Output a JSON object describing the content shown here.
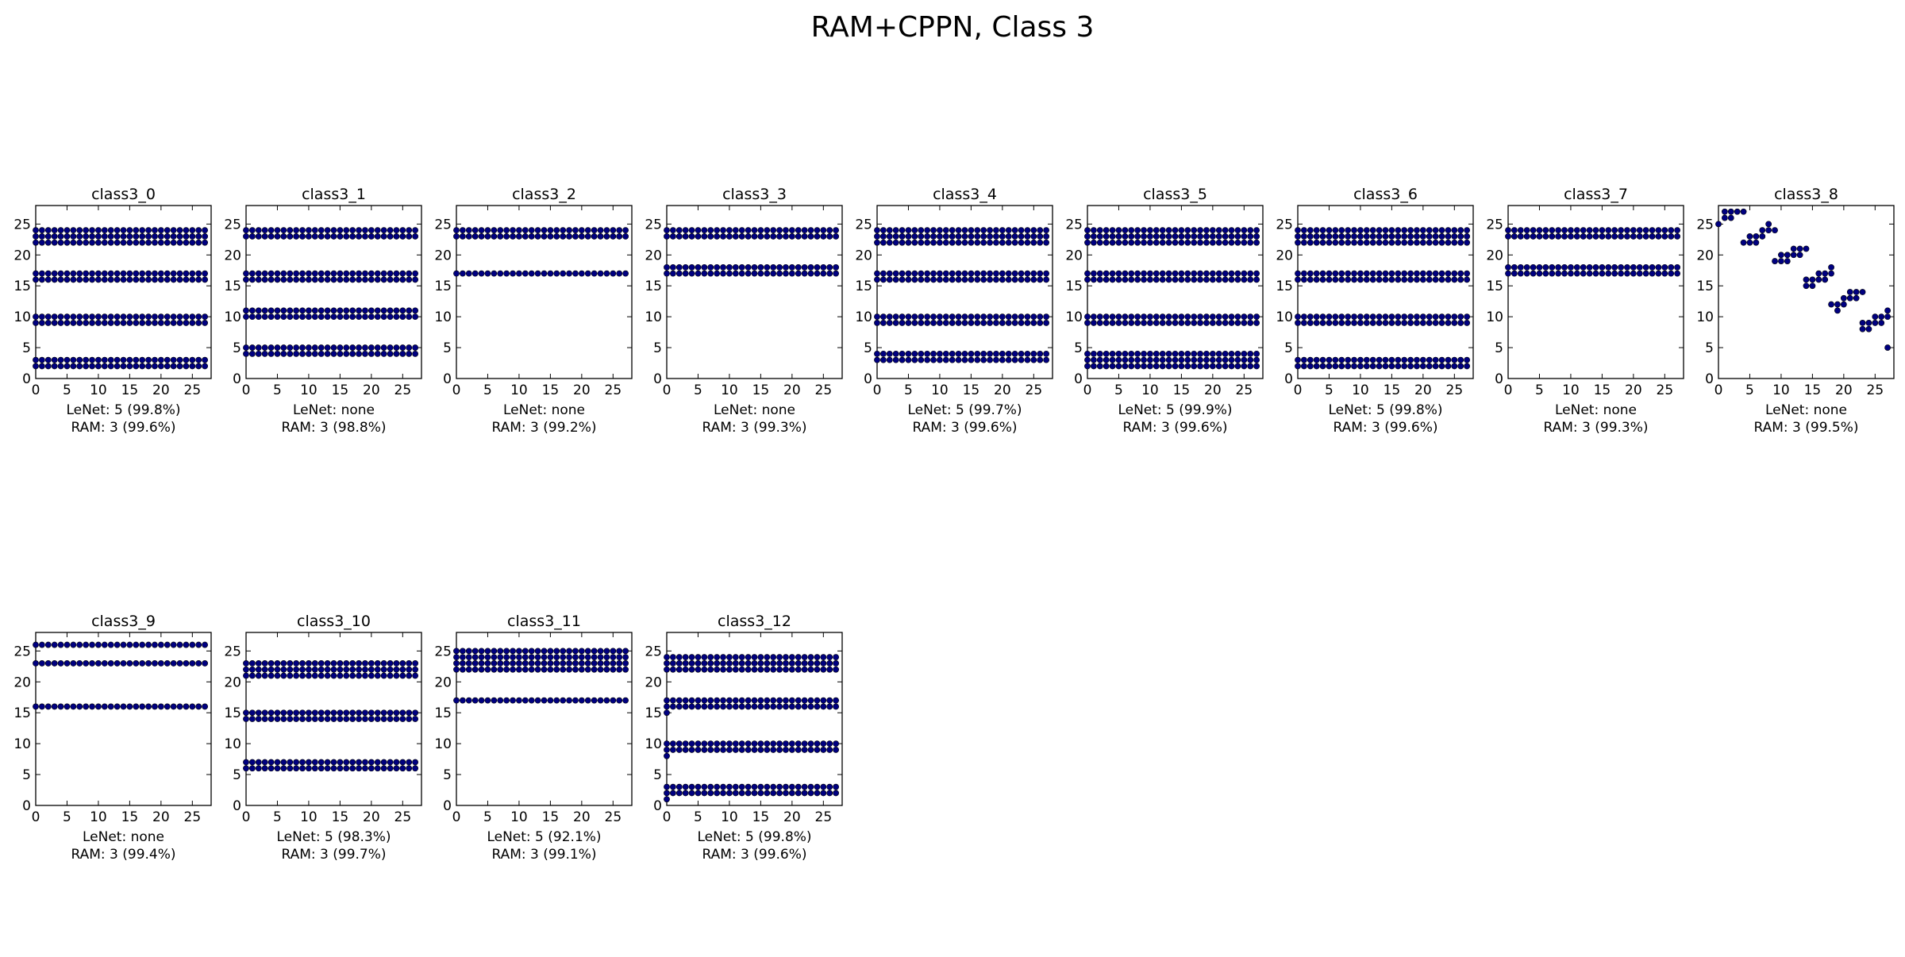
{
  "figure": {
    "title": "RAM+CPPN, Class 3"
  },
  "chart_data": {
    "type": "scatter",
    "marker_color": "#000080",
    "xlim": [
      0,
      28
    ],
    "ylim": [
      0,
      28
    ],
    "x_ticks": [
      0,
      5,
      10,
      15,
      20,
      25
    ],
    "y_ticks": [
      0,
      5,
      10,
      15,
      20,
      25
    ],
    "grid": false,
    "panels": [
      {
        "title": "class3_0",
        "lenet": "LeNet: 5 (99.8%)",
        "ram": "RAM: 3 (99.6%)",
        "rows": [
          2,
          3,
          9,
          10,
          16,
          17,
          22,
          23,
          24
        ]
      },
      {
        "title": "class3_1",
        "lenet": "LeNet: none",
        "ram": "RAM: 3 (98.8%)",
        "rows": [
          4,
          5,
          10,
          11,
          16,
          17,
          23,
          24
        ]
      },
      {
        "title": "class3_2",
        "lenet": "LeNet: none",
        "ram": "RAM: 3 (99.2%)",
        "rows": [
          17,
          23,
          24
        ]
      },
      {
        "title": "class3_3",
        "lenet": "LeNet: none",
        "ram": "RAM: 3 (99.3%)",
        "rows": [
          17,
          18,
          23,
          24
        ]
      },
      {
        "title": "class3_4",
        "lenet": "LeNet: 5 (99.7%)",
        "ram": "RAM: 3 (99.6%)",
        "rows": [
          3,
          4,
          9,
          10,
          16,
          17,
          22,
          23,
          24
        ]
      },
      {
        "title": "class3_5",
        "lenet": "LeNet: 5 (99.9%)",
        "ram": "RAM: 3 (99.6%)",
        "rows": [
          2,
          3,
          4,
          9,
          10,
          16,
          17,
          22,
          23,
          24
        ]
      },
      {
        "title": "class3_6",
        "lenet": "LeNet: 5 (99.8%)",
        "ram": "RAM: 3 (99.6%)",
        "rows": [
          2,
          3,
          9,
          10,
          16,
          17,
          22,
          23,
          24
        ]
      },
      {
        "title": "class3_7",
        "lenet": "LeNet: none",
        "ram": "RAM: 3 (99.3%)",
        "rows": [
          17,
          18,
          23,
          24
        ]
      },
      {
        "title": "class3_8",
        "lenet": "LeNet: none",
        "ram": "RAM: 3 (99.5%)",
        "rows": [],
        "points": [
          [
            0,
            25
          ],
          [
            1,
            26
          ],
          [
            1,
            27
          ],
          [
            2,
            26
          ],
          [
            2,
            27
          ],
          [
            3,
            27
          ],
          [
            4,
            27
          ],
          [
            4,
            22
          ],
          [
            5,
            22
          ],
          [
            5,
            23
          ],
          [
            6,
            22
          ],
          [
            6,
            23
          ],
          [
            7,
            23
          ],
          [
            7,
            24
          ],
          [
            8,
            24
          ],
          [
            8,
            25
          ],
          [
            9,
            24
          ],
          [
            9,
            19
          ],
          [
            10,
            19
          ],
          [
            10,
            20
          ],
          [
            11,
            19
          ],
          [
            11,
            20
          ],
          [
            12,
            20
          ],
          [
            12,
            21
          ],
          [
            13,
            20
          ],
          [
            13,
            21
          ],
          [
            14,
            21
          ],
          [
            14,
            15
          ],
          [
            14,
            16
          ],
          [
            15,
            15
          ],
          [
            15,
            16
          ],
          [
            16,
            16
          ],
          [
            16,
            17
          ],
          [
            17,
            16
          ],
          [
            17,
            17
          ],
          [
            18,
            17
          ],
          [
            18,
            18
          ],
          [
            18,
            12
          ],
          [
            19,
            11
          ],
          [
            19,
            12
          ],
          [
            20,
            12
          ],
          [
            20,
            13
          ],
          [
            21,
            13
          ],
          [
            21,
            14
          ],
          [
            22,
            13
          ],
          [
            22,
            14
          ],
          [
            23,
            14
          ],
          [
            23,
            8
          ],
          [
            23,
            9
          ],
          [
            24,
            8
          ],
          [
            24,
            9
          ],
          [
            25,
            9
          ],
          [
            25,
            10
          ],
          [
            26,
            9
          ],
          [
            26,
            10
          ],
          [
            27,
            10
          ],
          [
            27,
            11
          ],
          [
            27,
            5
          ]
        ]
      },
      {
        "title": "class3_9",
        "lenet": "LeNet: none",
        "ram": "RAM: 3 (99.4%)",
        "rows": [
          16,
          23,
          26
        ]
      },
      {
        "title": "class3_10",
        "lenet": "LeNet: 5 (98.3%)",
        "ram": "RAM: 3 (99.7%)",
        "rows": [
          6,
          7,
          14,
          15,
          21,
          22,
          23
        ]
      },
      {
        "title": "class3_11",
        "lenet": "LeNet: 5 (92.1%)",
        "ram": "RAM: 3 (99.1%)",
        "rows": [
          17,
          22,
          23,
          24,
          25
        ]
      },
      {
        "title": "class3_12",
        "lenet": "LeNet: 5 (99.8%)",
        "ram": "RAM: 3 (99.6%)",
        "rows": [
          2,
          3,
          9,
          10,
          16,
          17,
          22,
          23,
          24
        ],
        "points": [
          [
            0,
            15
          ],
          [
            0,
            8
          ],
          [
            0,
            1
          ]
        ]
      }
    ]
  }
}
